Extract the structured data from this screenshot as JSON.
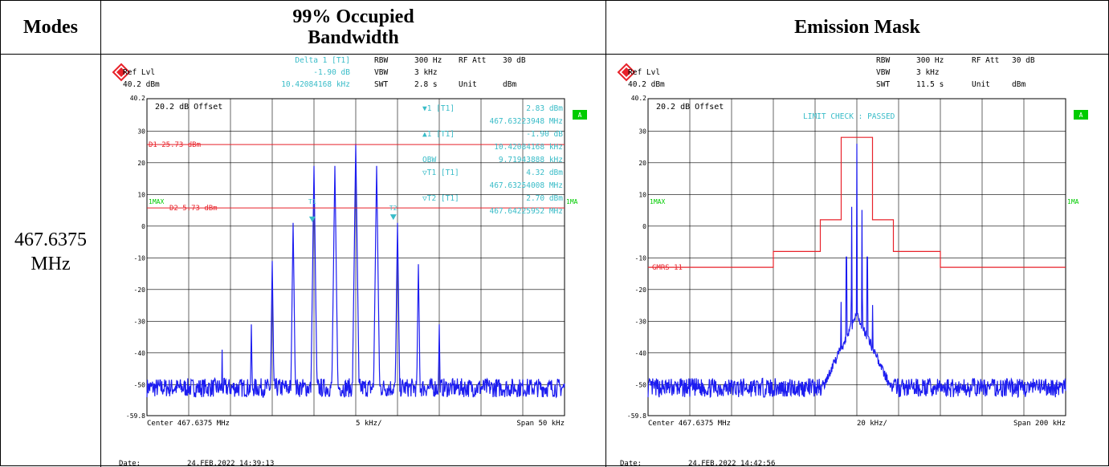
{
  "headers": {
    "modes": "Modes",
    "obw": "99% Occupied\nBandwidth",
    "mask": "Emission Mask"
  },
  "mode_value": "467.6375\nMHz",
  "colors": {
    "trace": "#1c1cf0",
    "line": "#e8222a",
    "annot": "#39bcc8",
    "green": "#00cc00",
    "grid": "#000000"
  },
  "left": {
    "header_rows": [
      [
        "",
        "",
        "Delta 1 [T1]",
        "RBW",
        "300 Hz",
        "RF Att",
        "30 dB"
      ],
      [
        "Ref Lvl",
        "",
        "-1.90 dB",
        "VBW",
        "3 kHz",
        "",
        ""
      ],
      [
        "40.2 dBm",
        "",
        "10.42084168 kHz",
        "SWT",
        "2.8 s",
        "Unit",
        "dBm"
      ]
    ],
    "offset_label": "20.2 dB Offset",
    "yticks": [
      "40.2",
      "30",
      "20",
      "10",
      "0",
      "-10",
      "-20",
      "-30",
      "-40",
      "-50",
      "-59.8"
    ],
    "d1_label": "D1 25.73 dBm",
    "d2_label": "D2 5.73 dBm",
    "trace_label": "1MAX",
    "trace_label_right": "1MA",
    "markers": [
      {
        "sym": "▼",
        "name": "1 [T1]",
        "value": "2.83 dBm",
        "freq": "467.63223948 MHz"
      },
      {
        "sym": "▲",
        "name": "1 [T1]",
        "value": "-1.90 dB",
        "freq": "10.42084168 kHz"
      },
      {
        "sym": "",
        "name": "OBW",
        "value": "9.71943888 kHz",
        "freq": ""
      },
      {
        "sym": "▽",
        "name": "T1 [T1]",
        "value": "4.32 dBm",
        "freq": "467.63254008 MHz"
      },
      {
        "sym": "▽",
        "name": "T2 [T1]",
        "value": "2.70 dBm",
        "freq": "467.64225952 MHz"
      }
    ],
    "t1_tag": "T1",
    "t2_tag": "T2",
    "footer_center": "Center 467.6375 MHz",
    "footer_div": "5 kHz/",
    "footer_span": "Span 50 kHz",
    "date_label": "Date:",
    "date_value": "24.FEB.2022  14:39:13",
    "a_badge": "A"
  },
  "right": {
    "header_rows": [
      [
        "",
        "",
        "",
        "RBW",
        "300 Hz",
        "RF Att",
        "30 dB"
      ],
      [
        "Ref Lvl",
        "",
        "",
        "VBW",
        "3 kHz",
        "",
        ""
      ],
      [
        "40.2 dBm",
        "",
        "",
        "SWT",
        "11.5 s",
        "Unit",
        "dBm"
      ]
    ],
    "offset_label": "20.2 dB Offset",
    "limit_check": "LIMIT CHECK  : PASSED",
    "yticks": [
      "40.2",
      "30",
      "20",
      "10",
      "0",
      "-10",
      "-20",
      "-30",
      "-40",
      "-50",
      "-59.8"
    ],
    "trace_label": "1MAX",
    "trace_label_right": "1MA",
    "mask_label": "GMRS 11",
    "footer_center": "Center 467.6375 MHz",
    "footer_div": "20 kHz/",
    "footer_span": "Span 200 kHz",
    "date_label": "Date:",
    "date_value": "24.FEB.2022  14:42:56",
    "a_badge": "A"
  },
  "chart_data": [
    {
      "type": "line",
      "title": "99% Occupied Bandwidth",
      "x_unit": "kHz offset from 467.6375 MHz",
      "xlim": [
        -25,
        25
      ],
      "ylim": [
        -59.8,
        40.2
      ],
      "grid": true,
      "series": [
        {
          "peaks_khz": [
            -12.5,
            -10,
            -7.5,
            -5,
            -2.5,
            0,
            2.5,
            5,
            7.5,
            10
          ],
          "peaks_dbm": [
            -31,
            -11,
            1,
            19,
            19,
            26,
            19,
            1,
            -12,
            -31
          ],
          "noise_floor_dbm": -51,
          "spur": {
            "x": -16,
            "y": -39
          }
        }
      ],
      "display_lines": [
        {
          "name": "D1",
          "y": 25.73
        },
        {
          "name": "D2",
          "y": 5.73
        }
      ]
    },
    {
      "type": "line",
      "title": "Emission Mask",
      "x_unit": "kHz offset from 467.6375 MHz",
      "xlim": [
        -100,
        100
      ],
      "ylim": [
        -59.8,
        40.2
      ],
      "grid": true,
      "mask": [
        [
          -100,
          -13
        ],
        [
          -40,
          -13
        ],
        [
          -40,
          -8
        ],
        [
          -17.5,
          -8
        ],
        [
          -17.5,
          2
        ],
        [
          -7.5,
          2
        ],
        [
          -7.5,
          28
        ],
        [
          7.5,
          28
        ],
        [
          7.5,
          2
        ],
        [
          17.5,
          2
        ],
        [
          17.5,
          -8
        ],
        [
          40,
          -8
        ],
        [
          40,
          -13
        ],
        [
          100,
          -13
        ]
      ],
      "series": [
        {
          "peaks_khz": [
            -7.5,
            -5,
            -2.5,
            0,
            2.5,
            5,
            7.5
          ],
          "peaks_dbm": [
            -10,
            18,
            20,
            26,
            19,
            18,
            -11
          ],
          "noise_floor_dbm": -51
        }
      ]
    }
  ]
}
